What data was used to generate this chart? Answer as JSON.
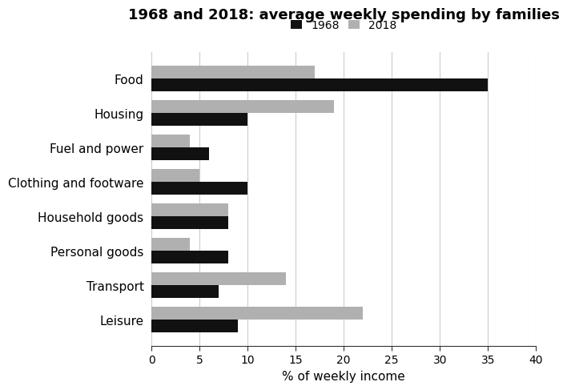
{
  "title": "1968 and 2018: average weekly spending by families",
  "xlabel": "% of weekly income",
  "categories": [
    "Food",
    "Housing",
    "Fuel and power",
    "Clothing and footware",
    "Household goods",
    "Personal goods",
    "Transport",
    "Leisure"
  ],
  "values_1968": [
    35,
    10,
    6,
    10,
    8,
    8,
    7,
    9
  ],
  "values_2018": [
    17,
    19,
    4,
    5,
    8,
    4,
    14,
    22
  ],
  "color_1968": "#111111",
  "color_2018": "#b0b0b0",
  "xlim": [
    0,
    40
  ],
  "xticks": [
    0,
    5,
    10,
    15,
    20,
    25,
    30,
    35,
    40
  ],
  "bar_height": 0.38,
  "legend_labels": [
    "1968",
    "2018"
  ],
  "title_fontsize": 13,
  "label_fontsize": 11,
  "tick_fontsize": 10,
  "background_color": "#ffffff"
}
